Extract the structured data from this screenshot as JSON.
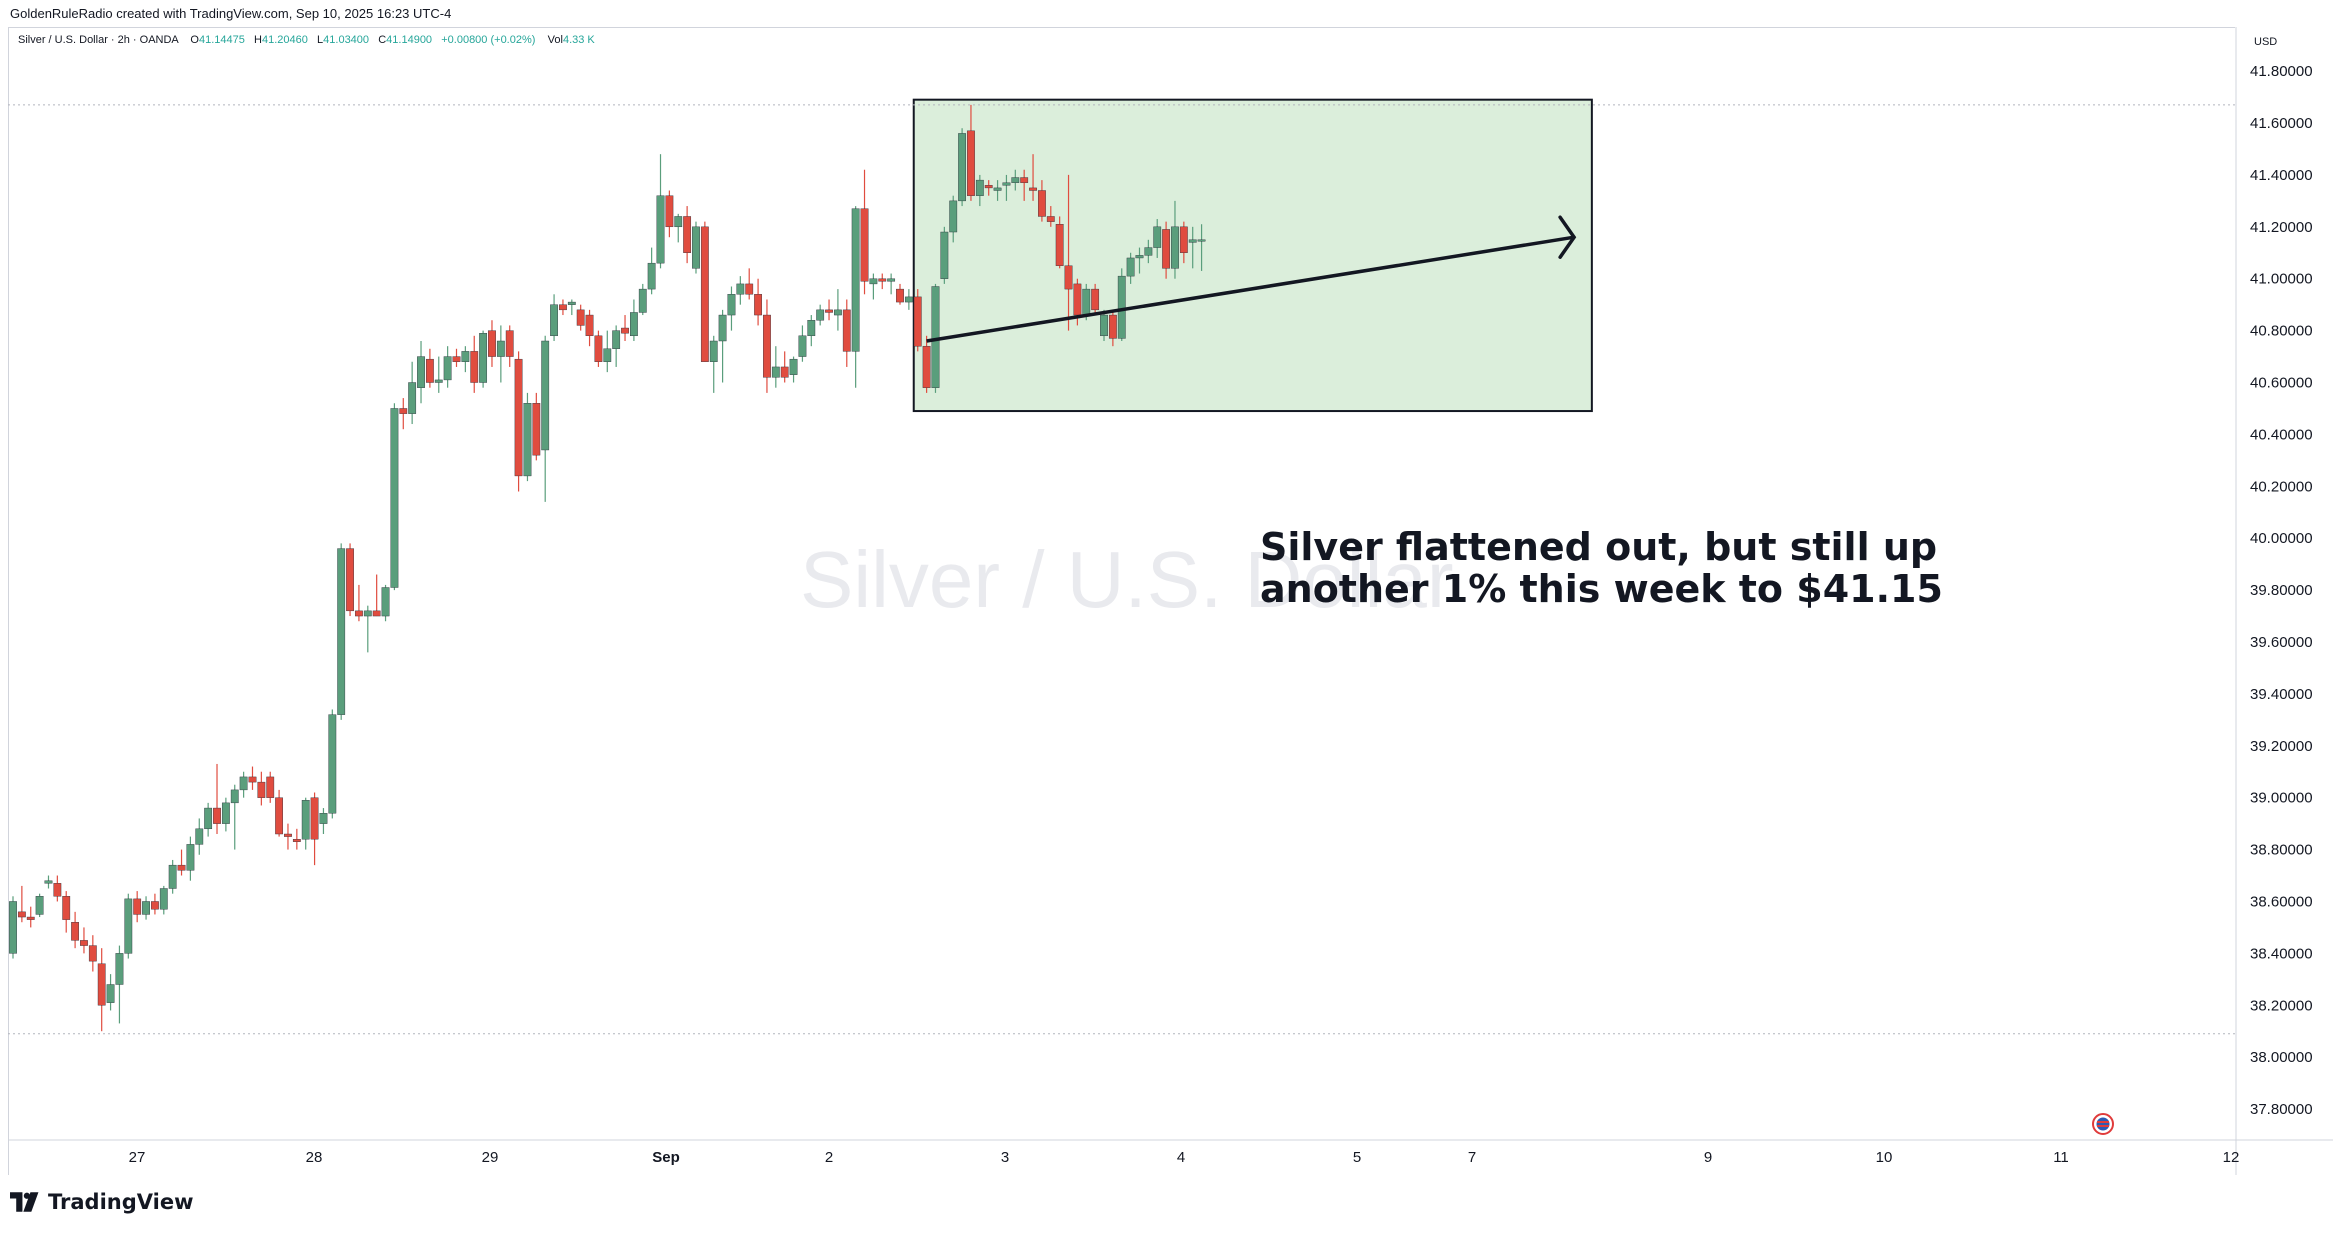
{
  "header": {
    "credit": "GoldenRuleRadio created with TradingView.com, Sep 10, 2025 16:23 UTC-4",
    "symbol": "Silver / U.S. Dollar · 2h · OANDA",
    "ohlc": {
      "open_label": "O",
      "open": "41.14475",
      "high_label": "H",
      "high": "41.20460",
      "low_label": "L",
      "low": "41.03400",
      "close_label": "C",
      "close": "41.14900",
      "change": "+0.00800 (+0.02%)",
      "volume_label": "Vol",
      "volume": "4.33 K"
    }
  },
  "currency": "USD",
  "watermark": "Silver / U.S. Dollar",
  "annotation": {
    "line1": "Silver flattened out, but still up",
    "line2": "another 1% this week to $41.15"
  },
  "brand": {
    "name": "TradingView",
    "icon": "tradingview-logo-icon"
  },
  "colors": {
    "up": "#5a9e7c",
    "down": "#e04c3f",
    "box_fill": "#dbeedb",
    "box_border": "#131722"
  },
  "chart_data": {
    "type": "candlestick",
    "ylim": [
      37.7,
      41.92
    ],
    "yticks": [
      "37.80000",
      "38.00000",
      "38.20000",
      "38.40000",
      "38.60000",
      "38.80000",
      "39.00000",
      "39.20000",
      "39.40000",
      "39.60000",
      "39.80000",
      "40.00000",
      "40.20000",
      "40.40000",
      "40.60000",
      "40.80000",
      "41.00000",
      "41.20000",
      "41.40000",
      "41.60000",
      "41.80000"
    ],
    "xticks": [
      "27",
      "28",
      "29",
      "Sep",
      "2",
      "3",
      "4",
      "5",
      "7",
      "9",
      "10",
      "11",
      "12"
    ],
    "candles": [
      {
        "o": 38.4,
        "h": 38.62,
        "l": 38.38,
        "c": 38.6
      },
      {
        "o": 38.56,
        "h": 38.66,
        "l": 38.52,
        "c": 38.54
      },
      {
        "o": 38.54,
        "h": 38.58,
        "l": 38.5,
        "c": 38.53
      },
      {
        "o": 38.55,
        "h": 38.63,
        "l": 38.54,
        "c": 38.62
      },
      {
        "o": 38.67,
        "h": 38.7,
        "l": 38.65,
        "c": 38.68
      },
      {
        "o": 38.67,
        "h": 38.7,
        "l": 38.6,
        "c": 38.62
      },
      {
        "o": 38.62,
        "h": 38.64,
        "l": 38.48,
        "c": 38.53
      },
      {
        "o": 38.52,
        "h": 38.56,
        "l": 38.42,
        "c": 38.45
      },
      {
        "o": 38.45,
        "h": 38.5,
        "l": 38.4,
        "c": 38.43
      },
      {
        "o": 38.43,
        "h": 38.47,
        "l": 38.33,
        "c": 38.37
      },
      {
        "o": 38.36,
        "h": 38.42,
        "l": 38.1,
        "c": 38.2
      },
      {
        "o": 38.21,
        "h": 38.32,
        "l": 38.18,
        "c": 38.28
      },
      {
        "o": 38.28,
        "h": 38.43,
        "l": 38.13,
        "c": 38.4
      },
      {
        "o": 38.4,
        "h": 38.63,
        "l": 38.38,
        "c": 38.61
      },
      {
        "o": 38.61,
        "h": 38.64,
        "l": 38.52,
        "c": 38.55
      },
      {
        "o": 38.55,
        "h": 38.62,
        "l": 38.53,
        "c": 38.6
      },
      {
        "o": 38.6,
        "h": 38.63,
        "l": 38.55,
        "c": 38.57
      },
      {
        "o": 38.57,
        "h": 38.66,
        "l": 38.55,
        "c": 38.65
      },
      {
        "o": 38.65,
        "h": 38.76,
        "l": 38.63,
        "c": 38.74
      },
      {
        "o": 38.74,
        "h": 38.8,
        "l": 38.7,
        "c": 38.72
      },
      {
        "o": 38.72,
        "h": 38.85,
        "l": 38.68,
        "c": 38.82
      },
      {
        "o": 38.82,
        "h": 38.92,
        "l": 38.78,
        "c": 38.88
      },
      {
        "o": 38.88,
        "h": 38.98,
        "l": 38.85,
        "c": 38.96
      },
      {
        "o": 38.96,
        "h": 39.13,
        "l": 38.86,
        "c": 38.9
      },
      {
        "o": 38.9,
        "h": 39.0,
        "l": 38.87,
        "c": 38.98
      },
      {
        "o": 38.98,
        "h": 39.05,
        "l": 38.8,
        "c": 39.03
      },
      {
        "o": 39.03,
        "h": 39.1,
        "l": 39.0,
        "c": 39.08
      },
      {
        "o": 39.08,
        "h": 39.12,
        "l": 39.03,
        "c": 39.06
      },
      {
        "o": 39.06,
        "h": 39.1,
        "l": 38.97,
        "c": 39.0
      },
      {
        "o": 39.08,
        "h": 39.1,
        "l": 38.98,
        "c": 39.0
      },
      {
        "o": 39.0,
        "h": 39.03,
        "l": 38.85,
        "c": 38.86
      },
      {
        "o": 38.86,
        "h": 38.9,
        "l": 38.8,
        "c": 38.85
      },
      {
        "o": 38.84,
        "h": 38.88,
        "l": 38.8,
        "c": 38.83
      },
      {
        "o": 38.84,
        "h": 39.0,
        "l": 38.8,
        "c": 38.99
      },
      {
        "o": 39.0,
        "h": 39.02,
        "l": 38.74,
        "c": 38.84
      },
      {
        "o": 38.9,
        "h": 38.96,
        "l": 38.86,
        "c": 38.94
      },
      {
        "o": 38.94,
        "h": 39.34,
        "l": 38.92,
        "c": 39.32
      },
      {
        "o": 39.32,
        "h": 39.98,
        "l": 39.3,
        "c": 39.96
      },
      {
        "o": 39.96,
        "h": 39.98,
        "l": 39.7,
        "c": 39.72
      },
      {
        "o": 39.72,
        "h": 39.82,
        "l": 39.68,
        "c": 39.7
      },
      {
        "o": 39.7,
        "h": 39.74,
        "l": 39.56,
        "c": 39.72
      },
      {
        "o": 39.72,
        "h": 39.86,
        "l": 39.7,
        "c": 39.7
      },
      {
        "o": 39.7,
        "h": 39.82,
        "l": 39.68,
        "c": 39.81
      },
      {
        "o": 39.81,
        "h": 40.52,
        "l": 39.8,
        "c": 40.5
      },
      {
        "o": 40.5,
        "h": 40.54,
        "l": 40.42,
        "c": 40.48
      },
      {
        "o": 40.48,
        "h": 40.68,
        "l": 40.44,
        "c": 40.6
      },
      {
        "o": 40.58,
        "h": 40.76,
        "l": 40.52,
        "c": 40.7
      },
      {
        "o": 40.69,
        "h": 40.73,
        "l": 40.58,
        "c": 40.6
      },
      {
        "o": 40.6,
        "h": 40.7,
        "l": 40.56,
        "c": 40.61
      },
      {
        "o": 40.61,
        "h": 40.74,
        "l": 40.58,
        "c": 40.7
      },
      {
        "o": 40.7,
        "h": 40.73,
        "l": 40.66,
        "c": 40.68
      },
      {
        "o": 40.68,
        "h": 40.74,
        "l": 40.64,
        "c": 40.72
      },
      {
        "o": 40.72,
        "h": 40.78,
        "l": 40.56,
        "c": 40.6
      },
      {
        "o": 40.6,
        "h": 40.8,
        "l": 40.58,
        "c": 40.79
      },
      {
        "o": 40.8,
        "h": 40.84,
        "l": 40.66,
        "c": 40.7
      },
      {
        "o": 40.7,
        "h": 40.82,
        "l": 40.6,
        "c": 40.76
      },
      {
        "o": 40.8,
        "h": 40.82,
        "l": 40.66,
        "c": 40.7
      },
      {
        "o": 40.69,
        "h": 40.72,
        "l": 40.18,
        "c": 40.24
      },
      {
        "o": 40.24,
        "h": 40.56,
        "l": 40.22,
        "c": 40.52
      },
      {
        "o": 40.52,
        "h": 40.56,
        "l": 40.3,
        "c": 40.32
      },
      {
        "o": 40.34,
        "h": 40.78,
        "l": 40.14,
        "c": 40.76
      },
      {
        "o": 40.78,
        "h": 40.94,
        "l": 40.76,
        "c": 40.9
      },
      {
        "o": 40.9,
        "h": 40.92,
        "l": 40.86,
        "c": 40.88
      },
      {
        "o": 40.9,
        "h": 40.92,
        "l": 40.86,
        "c": 40.91
      },
      {
        "o": 40.88,
        "h": 40.9,
        "l": 40.8,
        "c": 40.82
      },
      {
        "o": 40.86,
        "h": 40.88,
        "l": 40.74,
        "c": 40.78
      },
      {
        "o": 40.78,
        "h": 40.8,
        "l": 40.66,
        "c": 40.68
      },
      {
        "o": 40.68,
        "h": 40.8,
        "l": 40.64,
        "c": 40.73
      },
      {
        "o": 40.73,
        "h": 40.82,
        "l": 40.66,
        "c": 40.8
      },
      {
        "o": 40.81,
        "h": 40.86,
        "l": 40.76,
        "c": 40.79
      },
      {
        "o": 40.78,
        "h": 40.92,
        "l": 40.76,
        "c": 40.87
      },
      {
        "o": 40.87,
        "h": 40.98,
        "l": 40.86,
        "c": 40.96
      },
      {
        "o": 40.96,
        "h": 41.12,
        "l": 40.94,
        "c": 41.06
      },
      {
        "o": 41.06,
        "h": 41.48,
        "l": 41.04,
        "c": 41.32
      },
      {
        "o": 41.32,
        "h": 41.34,
        "l": 41.16,
        "c": 41.2
      },
      {
        "o": 41.2,
        "h": 41.25,
        "l": 41.14,
        "c": 41.24
      },
      {
        "o": 41.24,
        "h": 41.28,
        "l": 41.06,
        "c": 41.1
      },
      {
        "o": 41.04,
        "h": 41.22,
        "l": 41.02,
        "c": 41.2
      },
      {
        "o": 41.2,
        "h": 41.22,
        "l": 40.68,
        "c": 40.68
      },
      {
        "o": 40.68,
        "h": 40.78,
        "l": 40.56,
        "c": 40.76
      },
      {
        "o": 40.76,
        "h": 40.88,
        "l": 40.6,
        "c": 40.86
      },
      {
        "o": 40.86,
        "h": 40.97,
        "l": 40.8,
        "c": 40.94
      },
      {
        "o": 40.94,
        "h": 41.01,
        "l": 40.9,
        "c": 40.98
      },
      {
        "o": 40.98,
        "h": 41.04,
        "l": 40.92,
        "c": 40.94
      },
      {
        "o": 40.94,
        "h": 41.0,
        "l": 40.82,
        "c": 40.86
      },
      {
        "o": 40.86,
        "h": 40.92,
        "l": 40.56,
        "c": 40.62
      },
      {
        "o": 40.62,
        "h": 40.74,
        "l": 40.58,
        "c": 40.66
      },
      {
        "o": 40.66,
        "h": 40.72,
        "l": 40.6,
        "c": 40.62
      },
      {
        "o": 40.63,
        "h": 40.7,
        "l": 40.6,
        "c": 40.69
      },
      {
        "o": 40.7,
        "h": 40.82,
        "l": 40.68,
        "c": 40.78
      },
      {
        "o": 40.78,
        "h": 40.86,
        "l": 40.74,
        "c": 40.84
      },
      {
        "o": 40.84,
        "h": 40.9,
        "l": 40.82,
        "c": 40.88
      },
      {
        "o": 40.88,
        "h": 40.92,
        "l": 40.84,
        "c": 40.87
      },
      {
        "o": 40.86,
        "h": 40.96,
        "l": 40.8,
        "c": 40.88
      },
      {
        "o": 40.88,
        "h": 40.92,
        "l": 40.66,
        "c": 40.72
      },
      {
        "o": 40.72,
        "h": 41.28,
        "l": 40.58,
        "c": 41.27
      },
      {
        "o": 41.27,
        "h": 41.42,
        "l": 40.94,
        "c": 40.99
      },
      {
        "o": 40.98,
        "h": 41.02,
        "l": 40.92,
        "c": 41.0
      },
      {
        "o": 41.0,
        "h": 41.02,
        "l": 40.96,
        "c": 40.99
      },
      {
        "o": 40.99,
        "h": 41.02,
        "l": 40.94,
        "c": 41.0
      },
      {
        "o": 40.96,
        "h": 40.98,
        "l": 40.9,
        "c": 40.91
      },
      {
        "o": 40.91,
        "h": 40.96,
        "l": 40.88,
        "c": 40.93
      },
      {
        "o": 40.93,
        "h": 40.96,
        "l": 40.72,
        "c": 40.74
      },
      {
        "o": 40.74,
        "h": 40.78,
        "l": 40.56,
        "c": 40.58
      },
      {
        "o": 40.58,
        "h": 40.98,
        "l": 40.56,
        "c": 40.97
      },
      {
        "o": 41.0,
        "h": 41.2,
        "l": 40.98,
        "c": 41.18
      },
      {
        "o": 41.18,
        "h": 41.32,
        "l": 41.14,
        "c": 41.3
      },
      {
        "o": 41.3,
        "h": 41.58,
        "l": 41.28,
        "c": 41.56
      },
      {
        "o": 41.57,
        "h": 41.67,
        "l": 41.3,
        "c": 41.32
      },
      {
        "o": 41.32,
        "h": 41.4,
        "l": 41.28,
        "c": 41.38
      },
      {
        "o": 41.36,
        "h": 41.38,
        "l": 41.32,
        "c": 41.35
      },
      {
        "o": 41.34,
        "h": 41.38,
        "l": 41.3,
        "c": 41.35
      },
      {
        "o": 41.36,
        "h": 41.4,
        "l": 41.3,
        "c": 41.37
      },
      {
        "o": 41.37,
        "h": 41.42,
        "l": 41.34,
        "c": 41.39
      },
      {
        "o": 41.39,
        "h": 41.42,
        "l": 41.3,
        "c": 41.37
      },
      {
        "o": 41.35,
        "h": 41.48,
        "l": 41.3,
        "c": 41.34
      },
      {
        "o": 41.34,
        "h": 41.38,
        "l": 41.22,
        "c": 41.24
      },
      {
        "o": 41.24,
        "h": 41.28,
        "l": 41.2,
        "c": 41.22
      },
      {
        "o": 41.21,
        "h": 41.24,
        "l": 41.04,
        "c": 41.05
      },
      {
        "o": 41.05,
        "h": 41.4,
        "l": 40.8,
        "c": 40.96
      },
      {
        "o": 40.98,
        "h": 41.0,
        "l": 40.82,
        "c": 40.86
      },
      {
        "o": 40.86,
        "h": 40.98,
        "l": 40.84,
        "c": 40.96
      },
      {
        "o": 40.96,
        "h": 40.98,
        "l": 40.86,
        "c": 40.88
      },
      {
        "o": 40.78,
        "h": 40.88,
        "l": 40.76,
        "c": 40.86
      },
      {
        "o": 40.86,
        "h": 40.88,
        "l": 40.74,
        "c": 40.77
      },
      {
        "o": 40.77,
        "h": 41.04,
        "l": 40.76,
        "c": 41.01
      },
      {
        "o": 41.01,
        "h": 41.1,
        "l": 40.98,
        "c": 41.08
      },
      {
        "o": 41.08,
        "h": 41.12,
        "l": 41.02,
        "c": 41.09
      },
      {
        "o": 41.09,
        "h": 41.15,
        "l": 41.06,
        "c": 41.12
      },
      {
        "o": 41.12,
        "h": 41.23,
        "l": 41.08,
        "c": 41.2
      },
      {
        "o": 41.19,
        "h": 41.22,
        "l": 41.0,
        "c": 41.04
      },
      {
        "o": 41.04,
        "h": 41.3,
        "l": 41.0,
        "c": 41.2
      },
      {
        "o": 41.2,
        "h": 41.22,
        "l": 41.06,
        "c": 41.1
      },
      {
        "o": 41.14,
        "h": 41.2,
        "l": 41.04,
        "c": 41.15
      },
      {
        "o": 41.15,
        "h": 41.21,
        "l": 41.03,
        "c": 41.15
      }
    ],
    "box": {
      "start_index": 102,
      "end_index": 178,
      "top": 41.69,
      "bottom": 40.49
    },
    "trendline": {
      "start_index": 103,
      "start_price": 40.76,
      "end_index": 176,
      "end_price": 41.16
    },
    "reference_lines": [
      41.67,
      38.09
    ],
    "arrow_hints": [
      "arrow-head-icon"
    ]
  }
}
